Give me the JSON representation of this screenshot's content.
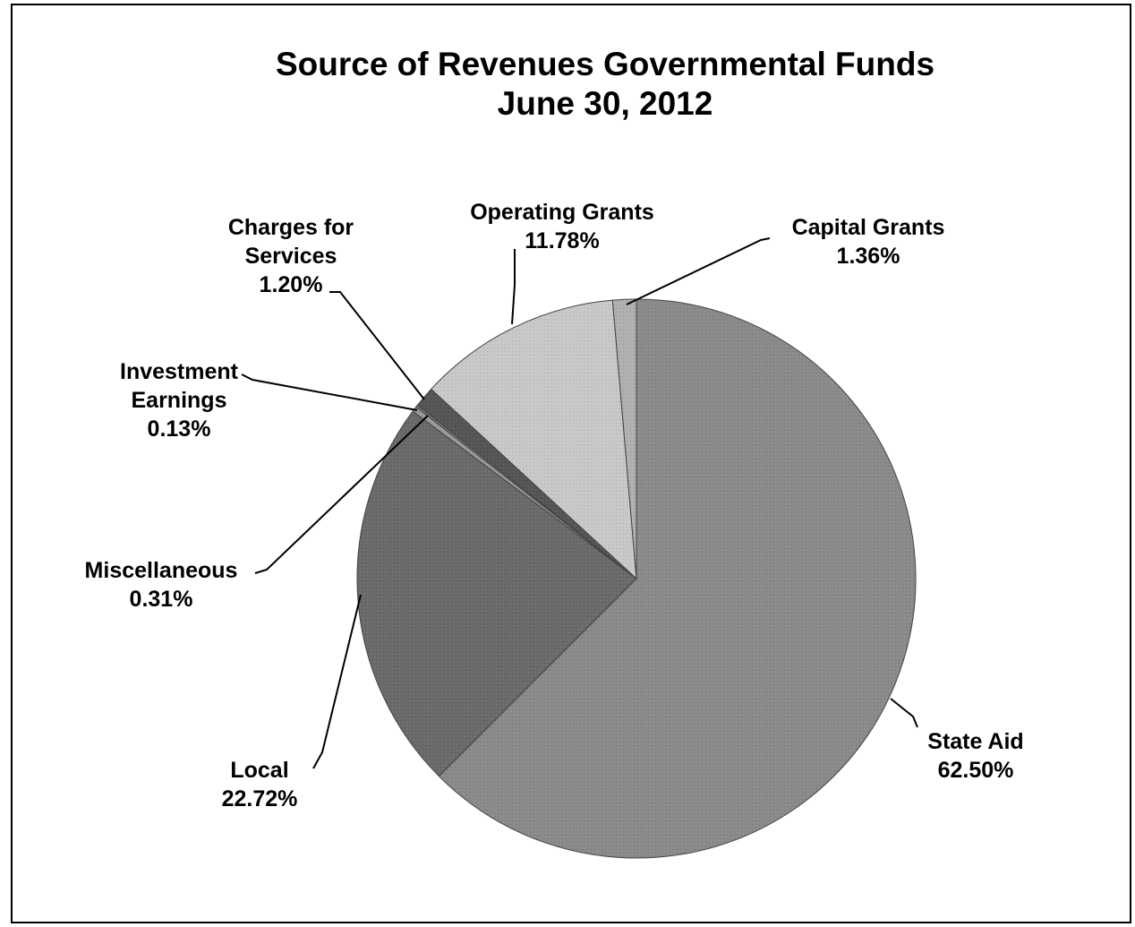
{
  "chart_data": {
    "type": "pie",
    "title": [
      "Source of Revenues Governmental Funds",
      "June 30, 2012"
    ],
    "slices": [
      {
        "name": "State Aid",
        "value": 62.5,
        "label": [
          "State Aid",
          "62.50%"
        ],
        "color": "#8a8a8a"
      },
      {
        "name": "Local",
        "value": 22.72,
        "label": [
          "Local",
          "22.72%"
        ],
        "color": "#6a6a6a"
      },
      {
        "name": "Miscellaneous",
        "value": 0.31,
        "label": [
          "Miscellaneous",
          "0.31%"
        ],
        "color": "#9a9a9a"
      },
      {
        "name": "Investment Earnings",
        "value": 0.13,
        "label": [
          "Investment",
          "Earnings",
          "0.13%"
        ],
        "color": "#7a7a7a"
      },
      {
        "name": "Charges for Services",
        "value": 1.2,
        "label": [
          "Charges for",
          "Services",
          "1.20%"
        ],
        "color": "#555555"
      },
      {
        "name": "Operating Grants",
        "value": 11.78,
        "label": [
          "Operating Grants",
          "11.78%"
        ],
        "color": "#c8c8c8"
      },
      {
        "name": "Capital Grants",
        "value": 1.36,
        "label": [
          "Capital Grants",
          "1.36%"
        ],
        "color": "#b0b0b0"
      }
    ],
    "legend": "none"
  }
}
